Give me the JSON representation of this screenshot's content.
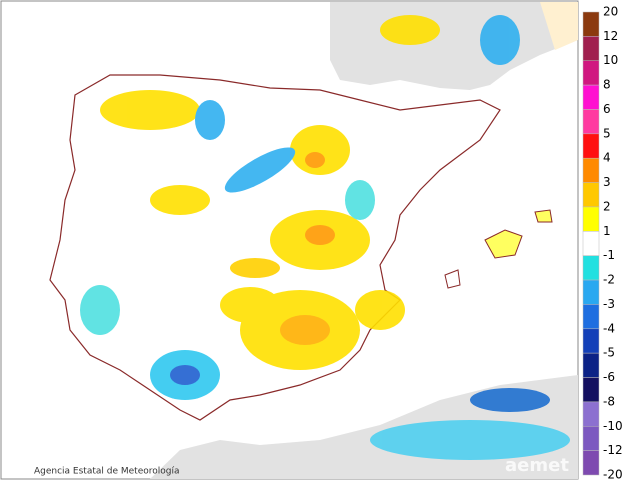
{
  "map": {
    "credit": "Agencia Estatal de Meteorología",
    "watermark": "aemet"
  },
  "legend": {
    "labels": [
      20,
      12,
      10,
      8,
      6,
      5,
      4,
      3,
      2,
      1,
      -1,
      -2,
      -3,
      -4,
      -5,
      -6,
      -8,
      -10,
      -12,
      -20
    ],
    "colors": [
      "#8b3a0f",
      "#a0204f",
      "#d01880",
      "#ff10d0",
      "#ff3aa0",
      "#ff1010",
      "#ff8a00",
      "#ffc800",
      "#ffff00",
      "#ffffff",
      "#22e0e0",
      "#2aa8f0",
      "#1e6ee0",
      "#1440b8",
      "#0c2286",
      "#141060",
      "#8c70d0",
      "#7c58c0",
      "#7e4ab0"
    ]
  }
}
